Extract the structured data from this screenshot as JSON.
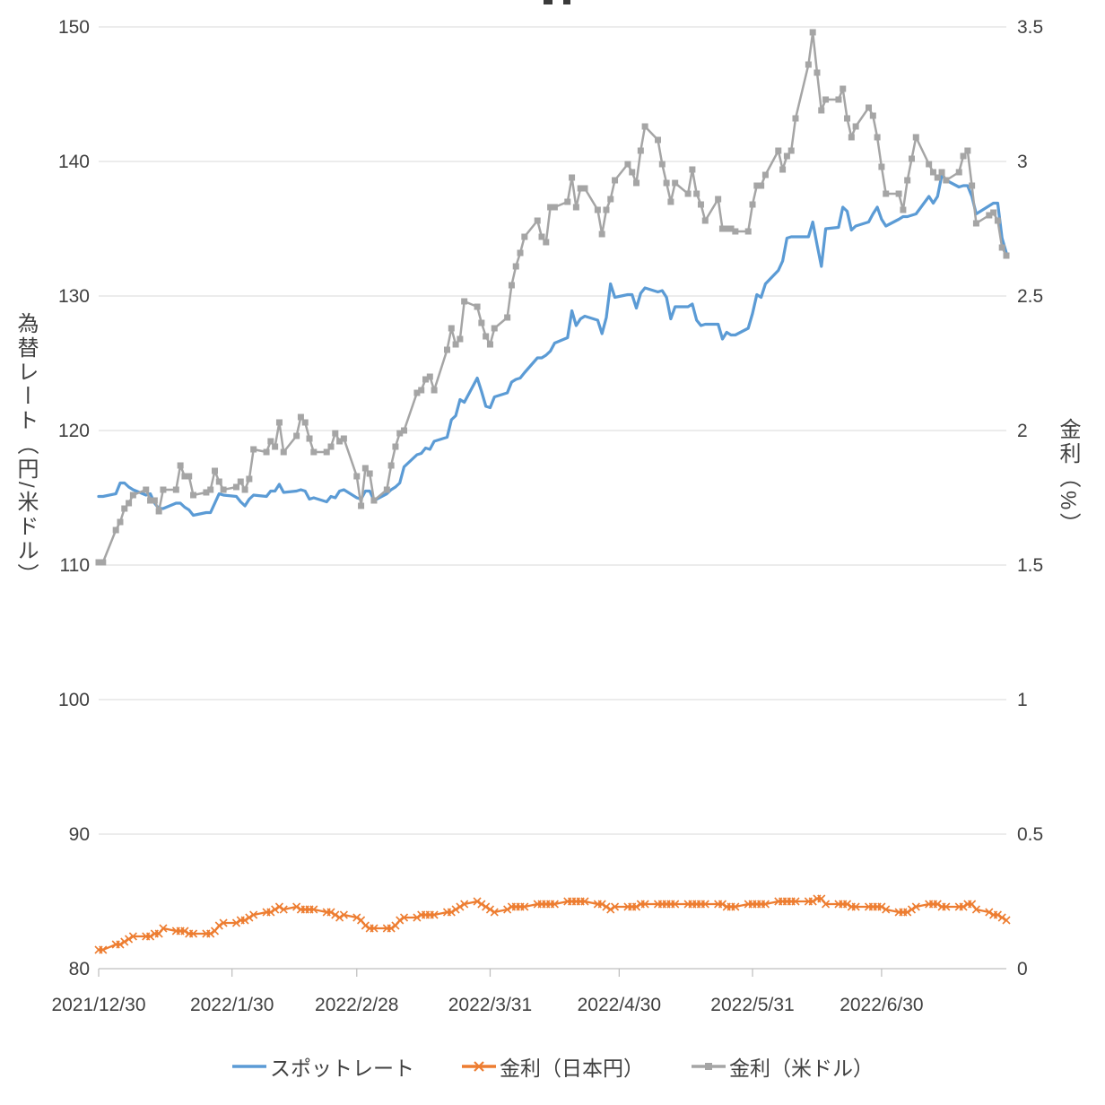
{
  "chart_data": {
    "type": "line",
    "title": "",
    "grid": true,
    "legend_position": "bottom",
    "x_axis": {
      "tick_labels": [
        "2021/12/30",
        "2022/1/30",
        "2022/2/28",
        "2022/3/31",
        "2022/4/30",
        "2022/5/31",
        "2022/6/30"
      ],
      "tick_dates": [
        "2021-12-30",
        "2022-01-30",
        "2022-02-28",
        "2022-03-31",
        "2022-04-30",
        "2022-05-31",
        "2022-06-30"
      ],
      "start": "2021-12-30",
      "end": "2022-07-29"
    },
    "y_left": {
      "title": "為替レート（円/米ドル）",
      "min": 80,
      "max": 150,
      "tick_values": [
        80,
        90,
        100,
        110,
        120,
        130,
        140,
        150
      ],
      "tick_labels": [
        "80",
        "90",
        "100",
        "110",
        "120",
        "130",
        "140",
        "150"
      ]
    },
    "y_right": {
      "title": "金利（%）",
      "min": 0,
      "max": 3.5,
      "tick_values": [
        0,
        0.5,
        1,
        1.5,
        2,
        2.5,
        3,
        3.5
      ],
      "tick_labels": [
        "0",
        "0.5",
        "1",
        "1.5",
        "2",
        "2.5",
        "3",
        "3.5"
      ]
    },
    "dates": [
      "2021-12-30",
      "2021-12-31",
      "2022-01-03",
      "2022-01-04",
      "2022-01-05",
      "2022-01-06",
      "2022-01-07",
      "2022-01-10",
      "2022-01-11",
      "2022-01-12",
      "2022-01-13",
      "2022-01-14",
      "2022-01-17",
      "2022-01-18",
      "2022-01-19",
      "2022-01-20",
      "2022-01-21",
      "2022-01-24",
      "2022-01-25",
      "2022-01-26",
      "2022-01-27",
      "2022-01-28",
      "2022-01-31",
      "2022-02-01",
      "2022-02-02",
      "2022-02-03",
      "2022-02-04",
      "2022-02-07",
      "2022-02-08",
      "2022-02-09",
      "2022-02-10",
      "2022-02-11",
      "2022-02-14",
      "2022-02-15",
      "2022-02-16",
      "2022-02-17",
      "2022-02-18",
      "2022-02-21",
      "2022-02-22",
      "2022-02-23",
      "2022-02-24",
      "2022-02-25",
      "2022-02-28",
      "2022-03-01",
      "2022-03-02",
      "2022-03-03",
      "2022-03-04",
      "2022-03-07",
      "2022-03-08",
      "2022-03-09",
      "2022-03-10",
      "2022-03-11",
      "2022-03-14",
      "2022-03-15",
      "2022-03-16",
      "2022-03-17",
      "2022-03-18",
      "2022-03-21",
      "2022-03-22",
      "2022-03-23",
      "2022-03-24",
      "2022-03-25",
      "2022-03-28",
      "2022-03-29",
      "2022-03-30",
      "2022-03-31",
      "2022-04-01",
      "2022-04-04",
      "2022-04-05",
      "2022-04-06",
      "2022-04-07",
      "2022-04-08",
      "2022-04-11",
      "2022-04-12",
      "2022-04-13",
      "2022-04-14",
      "2022-04-15",
      "2022-04-18",
      "2022-04-19",
      "2022-04-20",
      "2022-04-21",
      "2022-04-22",
      "2022-04-25",
      "2022-04-26",
      "2022-04-27",
      "2022-04-28",
      "2022-04-29",
      "2022-05-02",
      "2022-05-03",
      "2022-05-04",
      "2022-05-05",
      "2022-05-06",
      "2022-05-09",
      "2022-05-10",
      "2022-05-11",
      "2022-05-12",
      "2022-05-13",
      "2022-05-16",
      "2022-05-17",
      "2022-05-18",
      "2022-05-19",
      "2022-05-20",
      "2022-05-23",
      "2022-05-24",
      "2022-05-25",
      "2022-05-26",
      "2022-05-27",
      "2022-05-30",
      "2022-05-31",
      "2022-06-01",
      "2022-06-02",
      "2022-06-03",
      "2022-06-06",
      "2022-06-07",
      "2022-06-08",
      "2022-06-09",
      "2022-06-10",
      "2022-06-13",
      "2022-06-14",
      "2022-06-15",
      "2022-06-16",
      "2022-06-17",
      "2022-06-20",
      "2022-06-21",
      "2022-06-22",
      "2022-06-23",
      "2022-06-24",
      "2022-06-27",
      "2022-06-28",
      "2022-06-29",
      "2022-06-30",
      "2022-07-01",
      "2022-07-04",
      "2022-07-05",
      "2022-07-06",
      "2022-07-07",
      "2022-07-08",
      "2022-07-11",
      "2022-07-12",
      "2022-07-13",
      "2022-07-14",
      "2022-07-15",
      "2022-07-18",
      "2022-07-19",
      "2022-07-20",
      "2022-07-21",
      "2022-07-22",
      "2022-07-25",
      "2022-07-26",
      "2022-07-27",
      "2022-07-28",
      "2022-07-29"
    ],
    "series": [
      {
        "name": "スポットレート",
        "axis": "left",
        "color": "#5b9bd5",
        "marker": "none",
        "width": 3.25,
        "values": [
          115.1,
          115.1,
          115.3,
          116.1,
          116.1,
          115.8,
          115.6,
          115.2,
          115.3,
          114.6,
          114.2,
          114.2,
          114.6,
          114.6,
          114.3,
          114.1,
          113.7,
          113.9,
          113.9,
          114.6,
          115.3,
          115.2,
          115.1,
          114.7,
          114.4,
          114.9,
          115.2,
          115.1,
          115.5,
          115.5,
          116.0,
          115.4,
          115.5,
          115.6,
          115.5,
          114.9,
          115.0,
          114.7,
          115.1,
          115.0,
          115.5,
          115.6,
          115.0,
          114.9,
          115.5,
          115.5,
          114.8,
          115.3,
          115.6,
          115.8,
          116.1,
          117.3,
          118.2,
          118.3,
          118.7,
          118.6,
          119.2,
          119.5,
          120.8,
          121.1,
          122.3,
          122.1,
          123.9,
          122.9,
          121.8,
          121.7,
          122.5,
          122.8,
          123.6,
          123.8,
          123.9,
          124.3,
          125.4,
          125.4,
          125.6,
          125.9,
          126.5,
          126.9,
          128.9,
          127.8,
          128.3,
          128.5,
          128.2,
          127.2,
          128.4,
          130.9,
          129.9,
          130.1,
          130.1,
          129.1,
          130.2,
          130.6,
          130.3,
          130.4,
          129.9,
          128.3,
          129.2,
          129.2,
          129.4,
          128.2,
          127.8,
          127.9,
          127.9,
          126.8,
          127.3,
          127.1,
          127.1,
          127.6,
          128.7,
          130.1,
          129.9,
          130.9,
          131.9,
          132.6,
          134.3,
          134.4,
          134.4,
          134.4,
          135.5,
          133.8,
          132.2,
          135.0,
          135.1,
          136.6,
          136.3,
          134.9,
          135.2,
          135.5,
          136.1,
          136.6,
          135.7,
          135.2,
          135.7,
          135.9,
          135.9,
          136.0,
          136.1,
          137.4,
          136.9,
          137.4,
          139.0,
          138.6,
          138.1,
          138.2,
          138.2,
          137.4,
          136.1,
          136.7,
          136.9,
          136.9,
          134.3,
          133.2
        ]
      },
      {
        "name": "金利（日本円）",
        "axis": "right",
        "color": "#ed7d31",
        "marker": "x",
        "width": 2.25,
        "values": [
          0.07,
          0.07,
          0.09,
          0.09,
          0.1,
          0.11,
          0.12,
          0.12,
          0.12,
          0.13,
          0.13,
          0.15,
          0.14,
          0.14,
          0.14,
          0.13,
          0.13,
          0.13,
          0.13,
          0.14,
          0.16,
          0.17,
          0.17,
          0.18,
          0.18,
          0.19,
          0.2,
          0.21,
          0.21,
          0.22,
          0.23,
          0.22,
          0.23,
          0.22,
          0.22,
          0.22,
          0.22,
          0.21,
          0.21,
          0.2,
          0.19,
          0.2,
          0.19,
          0.18,
          0.16,
          0.15,
          0.15,
          0.15,
          0.15,
          0.16,
          0.18,
          0.19,
          0.19,
          0.2,
          0.2,
          0.2,
          0.2,
          0.21,
          0.21,
          0.22,
          0.23,
          0.24,
          0.25,
          0.24,
          0.23,
          0.22,
          0.21,
          0.22,
          0.23,
          0.23,
          0.23,
          0.23,
          0.24,
          0.24,
          0.24,
          0.24,
          0.24,
          0.25,
          0.25,
          0.25,
          0.25,
          0.25,
          0.24,
          0.24,
          0.23,
          0.22,
          0.23,
          0.23,
          0.23,
          0.23,
          0.24,
          0.24,
          0.24,
          0.24,
          0.24,
          0.24,
          0.24,
          0.24,
          0.24,
          0.24,
          0.24,
          0.24,
          0.24,
          0.24,
          0.23,
          0.23,
          0.23,
          0.24,
          0.24,
          0.24,
          0.24,
          0.24,
          0.25,
          0.25,
          0.25,
          0.25,
          0.25,
          0.25,
          0.25,
          0.26,
          0.26,
          0.24,
          0.24,
          0.24,
          0.24,
          0.23,
          0.23,
          0.23,
          0.23,
          0.23,
          0.23,
          0.22,
          0.21,
          0.21,
          0.21,
          0.22,
          0.23,
          0.24,
          0.24,
          0.24,
          0.23,
          0.23,
          0.23,
          0.23,
          0.24,
          0.24,
          0.22,
          0.21,
          0.2,
          0.2,
          0.19,
          0.18
        ]
      },
      {
        "name": "金利（米ドル）",
        "axis": "right",
        "color": "#a5a5a5",
        "marker": "square",
        "width": 2.5,
        "values": [
          1.51,
          1.51,
          1.63,
          1.66,
          1.71,
          1.73,
          1.76,
          1.78,
          1.74,
          1.74,
          1.7,
          1.78,
          1.78,
          1.87,
          1.83,
          1.83,
          1.76,
          1.77,
          1.78,
          1.85,
          1.81,
          1.78,
          1.79,
          1.81,
          1.78,
          1.82,
          1.93,
          1.92,
          1.96,
          1.94,
          2.03,
          1.92,
          1.98,
          2.05,
          2.03,
          1.97,
          1.92,
          1.92,
          1.94,
          1.99,
          1.96,
          1.97,
          1.83,
          1.72,
          1.86,
          1.84,
          1.74,
          1.78,
          1.87,
          1.94,
          1.99,
          2.0,
          2.14,
          2.15,
          2.19,
          2.2,
          2.15,
          2.3,
          2.38,
          2.32,
          2.34,
          2.48,
          2.46,
          2.4,
          2.35,
          2.32,
          2.38,
          2.42,
          2.54,
          2.61,
          2.66,
          2.72,
          2.78,
          2.72,
          2.7,
          2.83,
          2.83,
          2.85,
          2.94,
          2.83,
          2.9,
          2.9,
          2.82,
          2.73,
          2.82,
          2.86,
          2.93,
          2.99,
          2.96,
          2.92,
          3.04,
          3.13,
          3.08,
          2.99,
          2.92,
          2.85,
          2.92,
          2.88,
          2.97,
          2.88,
          2.84,
          2.78,
          2.86,
          2.75,
          2.75,
          2.75,
          2.74,
          2.74,
          2.84,
          2.91,
          2.91,
          2.95,
          3.04,
          2.97,
          3.02,
          3.04,
          3.16,
          3.36,
          3.48,
          3.33,
          3.19,
          3.23,
          3.23,
          3.27,
          3.16,
          3.09,
          3.13,
          3.2,
          3.17,
          3.09,
          2.98,
          2.88,
          2.88,
          2.82,
          2.93,
          3.01,
          3.09,
          2.99,
          2.96,
          2.94,
          2.96,
          2.93,
          2.96,
          3.02,
          3.04,
          2.91,
          2.77,
          2.8,
          2.81,
          2.78,
          2.68,
          2.65
        ]
      }
    ],
    "legend": [
      "スポットレート",
      "金利（日本円）",
      "金利（米ドル）"
    ]
  }
}
